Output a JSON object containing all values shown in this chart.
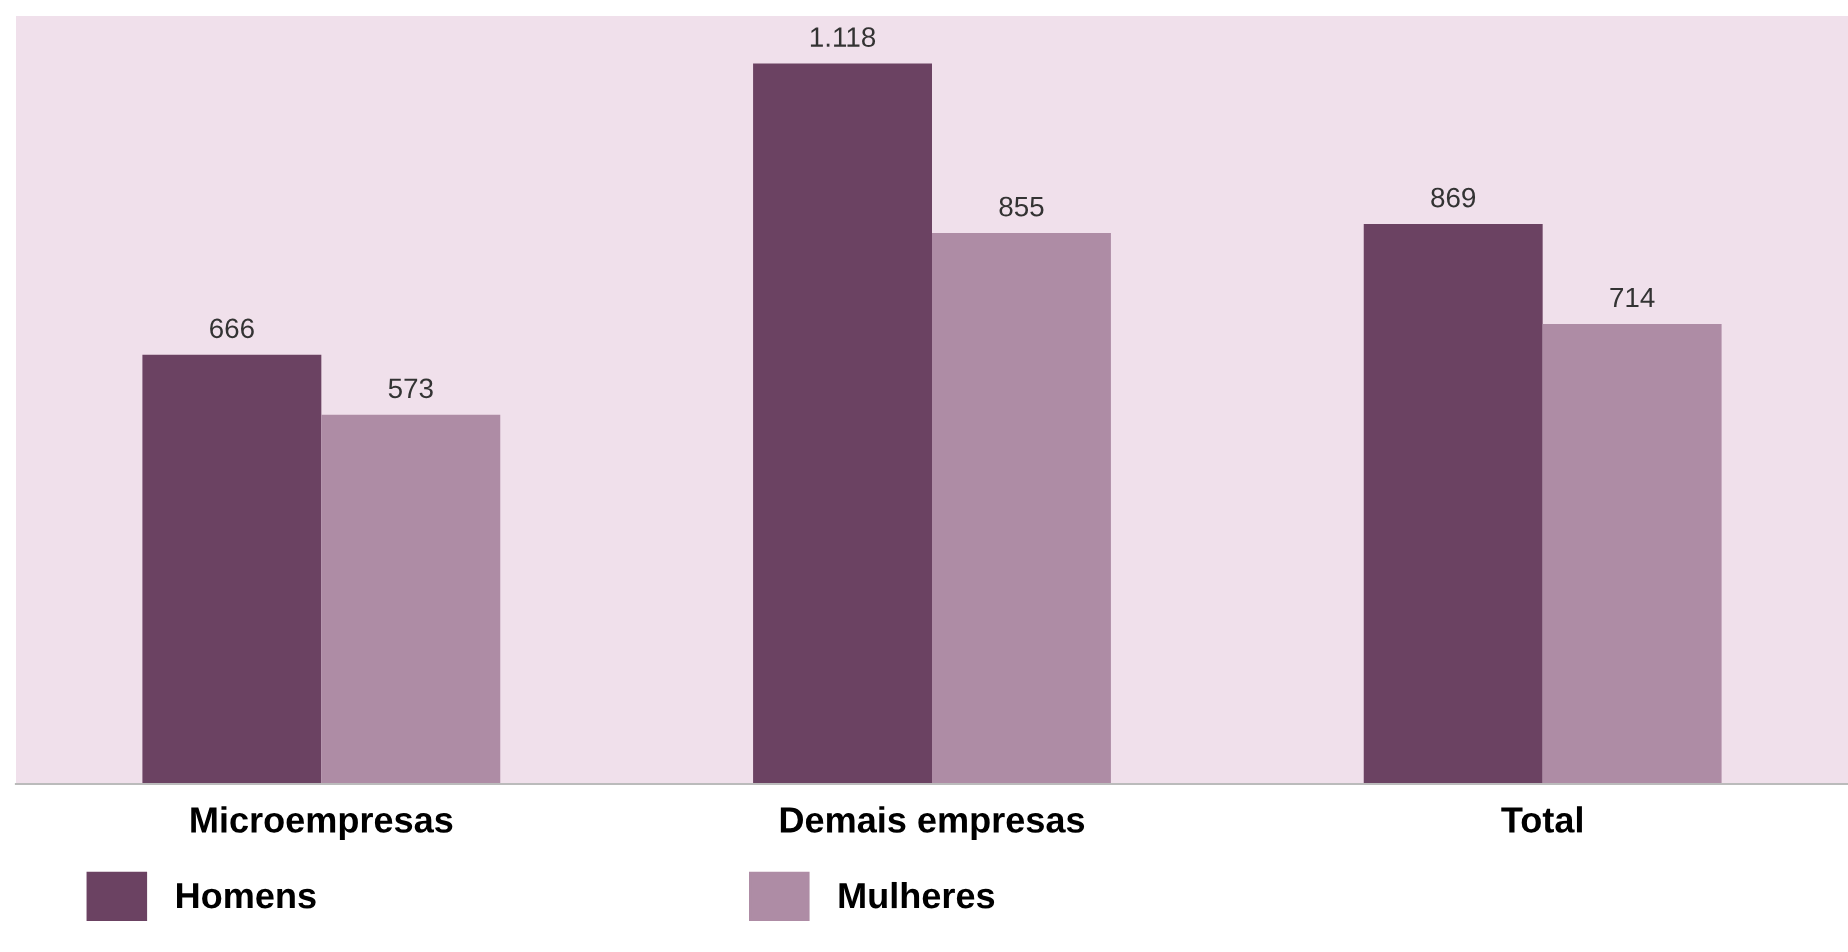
{
  "chart_data": {
    "type": "bar",
    "categories": [
      "Microempresas",
      "Demais empresas",
      "Total"
    ],
    "series": [
      {
        "name": "Homens",
        "color": "#6b4262",
        "values": [
          666,
          1118,
          869
        ],
        "value_labels": [
          "666",
          "1.118",
          "869"
        ]
      },
      {
        "name": "Mulheres",
        "color": "#ae8ca5",
        "values": [
          573,
          855,
          714
        ],
        "value_labels": [
          "573",
          "855",
          "714"
        ]
      }
    ],
    "relative": false,
    "legend": "bottom",
    "grid": false
  }
}
